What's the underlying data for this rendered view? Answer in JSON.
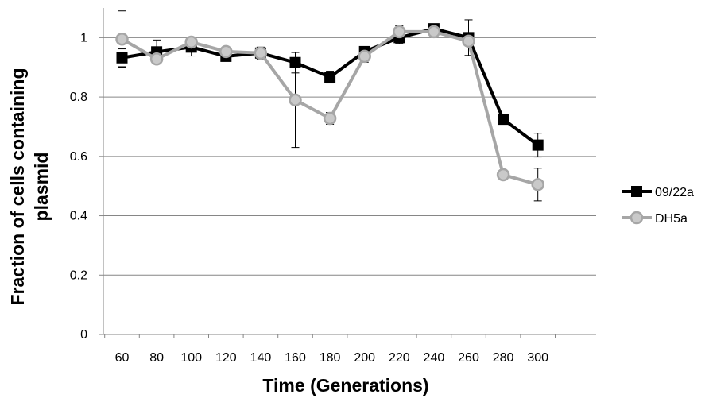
{
  "chart_data": {
    "type": "line",
    "title": "",
    "xlabel": "Time (Generations)",
    "ylabel": "Fraction of cells containing plasmid",
    "ylabel_lines": [
      "Fraction of cells containing",
      "plasmid"
    ],
    "x": [
      60,
      80,
      100,
      120,
      140,
      160,
      180,
      200,
      220,
      240,
      260,
      280,
      300
    ],
    "x_tick_labels": [
      "60",
      "80",
      "100",
      "120",
      "140",
      "160",
      "180",
      "200",
      "220",
      "240",
      "260",
      "280",
      "300"
    ],
    "y_ticks": [
      0,
      0.2,
      0.4,
      0.6,
      0.8,
      1
    ],
    "y_tick_labels": [
      "0",
      "0.2",
      "0.4",
      "0.6",
      "0.8",
      "1"
    ],
    "ylim": [
      0,
      1.1
    ],
    "grid": "horizontal",
    "legend_position": "right",
    "series": [
      {
        "name": "09/22a",
        "color": "#000000",
        "marker": "square",
        "values": [
          0.932,
          0.952,
          0.968,
          0.937,
          0.948,
          0.916,
          0.867,
          0.953,
          1.0,
          1.03,
          1.0,
          0.725,
          0.638
        ],
        "errors": [
          0.03,
          0.04,
          0.03,
          0.015,
          0.02,
          0.035,
          0.02,
          0.015,
          0.02,
          0.015,
          0.06,
          0.01,
          0.04
        ]
      },
      {
        "name": "DH5a",
        "color": "#a6a6a6",
        "marker": "circle",
        "values": [
          0.995,
          0.928,
          0.985,
          0.953,
          0.948,
          0.79,
          0.728,
          0.937,
          1.02,
          1.02,
          0.988,
          0.538,
          0.505
        ],
        "errors": [
          0.095,
          0.01,
          0.015,
          0.01,
          0.01,
          0.16,
          0.02,
          0.02,
          0.02,
          0.01,
          0.01,
          0.01,
          0.055
        ]
      }
    ]
  }
}
